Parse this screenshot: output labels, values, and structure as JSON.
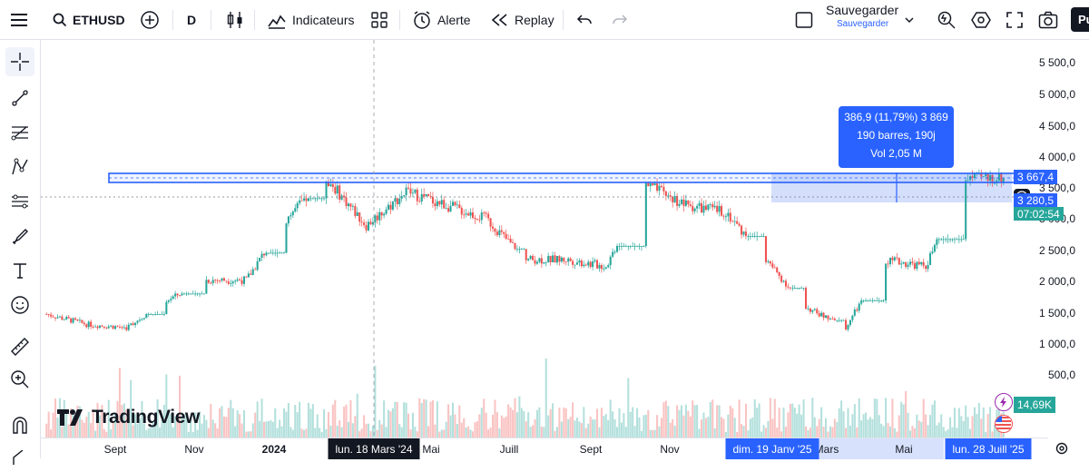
{
  "toolbar": {
    "symbol": "ETHUSD",
    "interval": "D",
    "indicators_label": "Indicateurs",
    "alert_label": "Alerte",
    "replay_label": "Replay",
    "save_label": "Sauvegarder",
    "save_sublabel": "Sauvegarder",
    "profile_initials": "Pu"
  },
  "left_tools": [
    "crosshair-tool",
    "trend-line-tool",
    "fib-tool",
    "pattern-tool",
    "forecast-tool",
    "brush-tool",
    "text-tool",
    "emoji-tool",
    "ruler-tool",
    "zoom-in-tool",
    "magnet-tool",
    "lock-tool"
  ],
  "price_axis": {
    "ticks": [
      "5 500,0",
      "5 000,0",
      "4 500,0",
      "4 000,0",
      "3 500,0",
      "3 000,0",
      "2 500,0",
      "2 000,0",
      "1 500,0",
      "1 000,0",
      "500,0"
    ],
    "tags": {
      "upper_price": "3 667,4",
      "current_price": "3 280,5",
      "countdown": "07:02:54",
      "volume": "14,69K"
    }
  },
  "time_axis": {
    "ticks": [
      "Sept",
      "Nov",
      "2024",
      "Mai",
      "Juill",
      "Sept",
      "Nov",
      "Mars",
      "Mai"
    ],
    "highlighted": {
      "crosshair_date": "lun. 18 Mars '24",
      "range_start": "dim. 19 Janv '25",
      "range_end": "lun. 28 Juill '25"
    }
  },
  "measure_box": {
    "line1": "386,9 (11,79%) 3 869",
    "line2": "190 barres, 190j",
    "line3": "Vol 2,05 M"
  },
  "branding": {
    "name": "TradingView"
  },
  "chart_data": {
    "type": "candlestick",
    "symbol": "ETHUSD",
    "interval": "D",
    "ylim": [
      0,
      5800
    ],
    "x": [
      "2023-08",
      "2023-09",
      "2023-10",
      "2023-11",
      "2023-12",
      "2024-01",
      "2024-02",
      "2024-03",
      "2024-04",
      "2024-05",
      "2024-06",
      "2024-07",
      "2024-08",
      "2024-09",
      "2024-10",
      "2024-11",
      "2024-12",
      "2025-01",
      "2025-02",
      "2025-03",
      "2025-04",
      "2025-05",
      "2025-06",
      "2025-07"
    ],
    "close": [
      1800,
      1650,
      1600,
      2000,
      2300,
      2300,
      3200,
      3800,
      3100,
      3600,
      3400,
      3200,
      2600,
      2600,
      2500,
      3700,
      3400,
      3300,
      2600,
      1900,
      1600,
      2600,
      2500,
      3800
    ],
    "high": [
      1900,
      1750,
      1800,
      2100,
      2400,
      2700,
      3500,
      4090,
      3700,
      3900,
      3900,
      3500,
      3300,
      2800,
      2800,
      3900,
      4100,
      3700,
      3400,
      2500,
      2000,
      2700,
      2900,
      3870
    ],
    "low": [
      1600,
      1550,
      1530,
      1700,
      2100,
      2100,
      2300,
      3200,
      2850,
      2900,
      3300,
      2900,
      2100,
      2300,
      2300,
      2400,
      3100,
      3100,
      2300,
      1800,
      1400,
      1800,
      2300,
      2400
    ],
    "resistance_zone": [
      3580,
      3667.4
    ],
    "measure_range": {
      "from": "2025-01-19",
      "to": "2025-07-28",
      "change": 386.9,
      "change_pct": 11.79,
      "bars": 190
    }
  },
  "colors": {
    "accent": "#2962ff",
    "up": "#26a69a",
    "down": "#ef5350",
    "measure_fill": "#c6d4fb"
  }
}
